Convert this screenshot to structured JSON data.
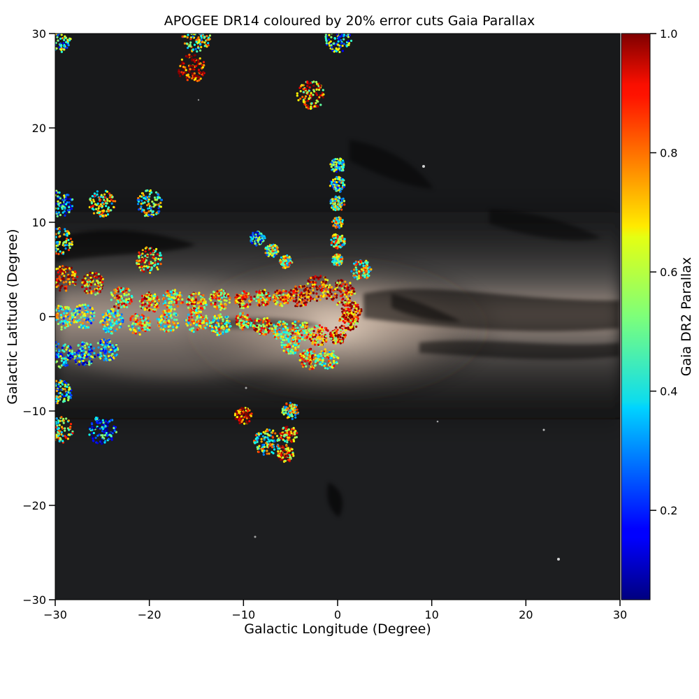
{
  "chart_data": {
    "type": "scatter",
    "title": "APOGEE DR14 coloured by 20% error cuts Gaia Parallax",
    "xlabel": "Galactic Longitude (Degree)",
    "ylabel": "Galactic Latitude (Degree)",
    "xlim": [
      -30,
      30
    ],
    "ylim": [
      -30,
      30
    ],
    "xticks": [
      -30,
      -20,
      -10,
      0,
      10,
      20,
      30
    ],
    "yticks": [
      -30,
      -20,
      -10,
      0,
      10,
      20,
      30
    ],
    "xticklabels": [
      "−30",
      "−20",
      "−10",
      "0",
      "10",
      "20",
      "30"
    ],
    "yticklabels": [
      "−30",
      "−20",
      "−10",
      "0",
      "10",
      "20",
      "30"
    ],
    "colorbar": {
      "label": "Gaia DR2 Parallax",
      "colormap": "jet",
      "range": [
        0.05,
        1.0
      ],
      "ticks": [
        0.2,
        0.4,
        0.6,
        0.8,
        1.0
      ],
      "ticklabels": [
        "0.2",
        "0.4",
        "0.6",
        "0.8",
        "1.0"
      ]
    },
    "background": "Gaia all-sky image of the Milky Way plane (dark sky with bright band and dust lanes around b=0)",
    "fields": [
      {
        "l": -29.7,
        "b": 29.5,
        "r": 1.5,
        "parallax": 0.45
      },
      {
        "l": -15.0,
        "b": 29.5,
        "r": 1.5,
        "parallax": 0.55
      },
      {
        "l": 0.0,
        "b": 29.5,
        "r": 1.5,
        "parallax": 0.4
      },
      {
        "l": -15.5,
        "b": 26.3,
        "r": 1.5,
        "parallax": 0.95
      },
      {
        "l": -2.8,
        "b": 23.5,
        "r": 1.5,
        "parallax": 0.75
      },
      {
        "l": -29.5,
        "b": 12.0,
        "r": 1.4,
        "parallax": 0.35
      },
      {
        "l": -25.0,
        "b": 12.0,
        "r": 1.4,
        "parallax": 0.6
      },
      {
        "l": -20.0,
        "b": 12.0,
        "r": 1.4,
        "parallax": 0.5
      },
      {
        "l": -29.5,
        "b": 8.0,
        "r": 1.4,
        "parallax": 0.55
      },
      {
        "l": -20.0,
        "b": 6.0,
        "r": 1.4,
        "parallax": 0.7
      },
      {
        "l": 0.0,
        "b": 16.0,
        "r": 0.8,
        "parallax": 0.4
      },
      {
        "l": 0.0,
        "b": 14.0,
        "r": 0.8,
        "parallax": 0.45
      },
      {
        "l": 0.0,
        "b": 12.0,
        "r": 0.8,
        "parallax": 0.55
      },
      {
        "l": 0.0,
        "b": 10.0,
        "r": 0.6,
        "parallax": 0.55
      },
      {
        "l": 0.0,
        "b": 8.0,
        "r": 0.8,
        "parallax": 0.6
      },
      {
        "l": 0.0,
        "b": 6.0,
        "r": 0.6,
        "parallax": 0.6
      },
      {
        "l": -8.5,
        "b": 8.3,
        "r": 0.8,
        "parallax": 0.35
      },
      {
        "l": -7.0,
        "b": 7.0,
        "r": 0.7,
        "parallax": 0.5
      },
      {
        "l": -5.5,
        "b": 5.8,
        "r": 0.7,
        "parallax": 0.6
      },
      {
        "l": 2.5,
        "b": 5.0,
        "r": 1.1,
        "parallax": 0.6
      },
      {
        "l": -29.0,
        "b": 4.0,
        "r": 1.4,
        "parallax": 0.9
      },
      {
        "l": -26.0,
        "b": 3.5,
        "r": 1.2,
        "parallax": 0.8
      },
      {
        "l": -23.0,
        "b": 2.0,
        "r": 1.2,
        "parallax": 0.7
      },
      {
        "l": -20.0,
        "b": 1.5,
        "r": 1.1,
        "parallax": 0.75
      },
      {
        "l": -17.5,
        "b": 1.8,
        "r": 1.1,
        "parallax": 0.65
      },
      {
        "l": -15.0,
        "b": 1.5,
        "r": 1.1,
        "parallax": 0.7
      },
      {
        "l": -12.5,
        "b": 1.8,
        "r": 1.1,
        "parallax": 0.7
      },
      {
        "l": -10.0,
        "b": 1.8,
        "r": 0.9,
        "parallax": 0.75
      },
      {
        "l": -8.0,
        "b": 2.0,
        "r": 0.9,
        "parallax": 0.75
      },
      {
        "l": -6.0,
        "b": 2.0,
        "r": 0.9,
        "parallax": 0.75
      },
      {
        "l": -4.0,
        "b": 2.2,
        "r": 1.2,
        "parallax": 0.9
      },
      {
        "l": -2.0,
        "b": 3.0,
        "r": 1.4,
        "parallax": 0.9
      },
      {
        "l": 0.5,
        "b": 2.5,
        "r": 1.4,
        "parallax": 0.85
      },
      {
        "l": 1.5,
        "b": 0.5,
        "r": 1.1,
        "parallax": 0.9
      },
      {
        "l": -29.5,
        "b": 0.0,
        "r": 1.4,
        "parallax": 0.5
      },
      {
        "l": -27.0,
        "b": 0.0,
        "r": 1.3,
        "parallax": 0.45
      },
      {
        "l": -24.0,
        "b": -0.5,
        "r": 1.3,
        "parallax": 0.5
      },
      {
        "l": -21.0,
        "b": -0.8,
        "r": 1.2,
        "parallax": 0.6
      },
      {
        "l": -18.0,
        "b": -0.5,
        "r": 1.2,
        "parallax": 0.6
      },
      {
        "l": -15.0,
        "b": -0.5,
        "r": 1.2,
        "parallax": 0.6
      },
      {
        "l": -12.5,
        "b": -0.8,
        "r": 1.2,
        "parallax": 0.6
      },
      {
        "l": -10.0,
        "b": -0.5,
        "r": 0.9,
        "parallax": 0.7
      },
      {
        "l": -8.0,
        "b": -1.0,
        "r": 1.0,
        "parallax": 0.75
      },
      {
        "l": -6.0,
        "b": -1.5,
        "r": 1.0,
        "parallax": 0.6
      },
      {
        "l": -4.0,
        "b": -1.5,
        "r": 1.1,
        "parallax": 0.7
      },
      {
        "l": -2.0,
        "b": -2.0,
        "r": 1.1,
        "parallax": 0.75
      },
      {
        "l": 0.0,
        "b": -2.0,
        "r": 0.9,
        "parallax": 0.8
      },
      {
        "l": 1.2,
        "b": -0.5,
        "r": 1.0,
        "parallax": 0.8
      },
      {
        "l": -29.5,
        "b": -4.0,
        "r": 1.4,
        "parallax": 0.35
      },
      {
        "l": -27.0,
        "b": -4.0,
        "r": 1.3,
        "parallax": 0.35
      },
      {
        "l": -24.5,
        "b": -3.5,
        "r": 1.2,
        "parallax": 0.4
      },
      {
        "l": -5.0,
        "b": -3.0,
        "r": 1.0,
        "parallax": 0.6
      },
      {
        "l": -3.0,
        "b": -4.5,
        "r": 1.1,
        "parallax": 0.7
      },
      {
        "l": -1.0,
        "b": -4.5,
        "r": 1.1,
        "parallax": 0.6
      },
      {
        "l": -29.5,
        "b": -8.0,
        "r": 1.3,
        "parallax": 0.45
      },
      {
        "l": -29.5,
        "b": -12.0,
        "r": 1.4,
        "parallax": 0.6
      },
      {
        "l": -25.0,
        "b": -12.0,
        "r": 1.5,
        "parallax": 0.25
      },
      {
        "l": -10.0,
        "b": -10.5,
        "r": 0.9,
        "parallax": 0.9
      },
      {
        "l": -5.0,
        "b": -10.0,
        "r": 0.9,
        "parallax": 0.55
      },
      {
        "l": -7.5,
        "b": -13.3,
        "r": 1.4,
        "parallax": 0.55
      },
      {
        "l": -5.2,
        "b": -12.5,
        "r": 0.9,
        "parallax": 0.7
      },
      {
        "l": -5.5,
        "b": -14.5,
        "r": 0.9,
        "parallax": 0.75
      }
    ]
  }
}
